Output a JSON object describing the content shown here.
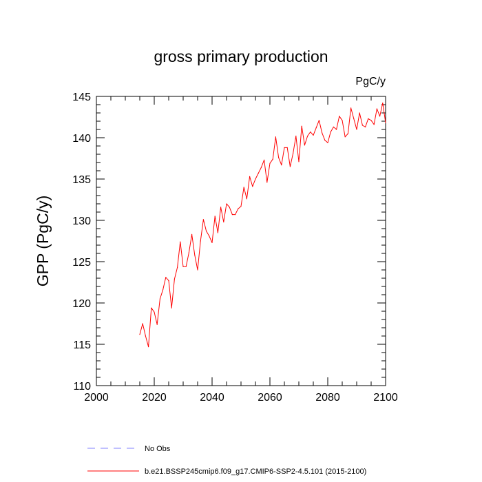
{
  "chart_data": {
    "type": "line",
    "title": "gross primary production",
    "units": "PgC/y",
    "ylabel": "GPP  (PgC/y)",
    "xlabel": "",
    "xlim": [
      2000,
      2100
    ],
    "ylim": [
      110,
      145
    ],
    "xticks": [
      2000,
      2020,
      2040,
      2060,
      2080,
      2100
    ],
    "yticks": [
      110,
      115,
      120,
      125,
      130,
      135,
      140,
      145
    ],
    "grid": false,
    "legend": [
      {
        "name": "No Obs",
        "style": "dashed",
        "color": "#8080ff"
      },
      {
        "name": "b.e21.BSSP245cmip6.f09_g17.CMIP6-SSP2-4.5.101 (2015-2100)",
        "style": "solid",
        "color": "#ff0000"
      }
    ],
    "series": [
      {
        "name": "b.e21.BSSP245cmip6.f09_g17.CMIP6-SSP2-4.5.101 (2015-2100)",
        "color": "#ff0000",
        "x": [
          2015,
          2016,
          2017,
          2018,
          2019,
          2020,
          2021,
          2022,
          2023,
          2024,
          2025,
          2026,
          2027,
          2028,
          2029,
          2030,
          2031,
          2032,
          2033,
          2034,
          2035,
          2036,
          2037,
          2038,
          2039,
          2040,
          2041,
          2042,
          2043,
          2044,
          2045,
          2046,
          2047,
          2048,
          2049,
          2050,
          2051,
          2052,
          2053,
          2054,
          2055,
          2056,
          2057,
          2058,
          2059,
          2060,
          2061,
          2062,
          2063,
          2064,
          2065,
          2066,
          2067,
          2068,
          2069,
          2070,
          2071,
          2072,
          2073,
          2074,
          2075,
          2076,
          2077,
          2078,
          2079,
          2080,
          2081,
          2082,
          2083,
          2084,
          2085,
          2086,
          2087,
          2088,
          2089,
          2090,
          2091,
          2092,
          2093,
          2094,
          2095,
          2096,
          2097,
          2098,
          2099,
          2100
        ],
        "values": [
          116.2,
          117.5,
          116.0,
          114.7,
          119.4,
          118.9,
          117.4,
          120.5,
          121.6,
          123.1,
          122.7,
          119.4,
          122.9,
          124.3,
          127.4,
          124.4,
          124.4,
          126.1,
          128.3,
          125.8,
          124.0,
          127.5,
          130.1,
          128.7,
          128.1,
          127.3,
          130.5,
          128.5,
          131.6,
          129.8,
          132.0,
          131.6,
          130.7,
          130.7,
          131.4,
          131.7,
          134.0,
          132.6,
          135.3,
          134.1,
          135.0,
          135.7,
          136.4,
          137.3,
          134.6,
          136.9,
          137.4,
          140.1,
          137.6,
          136.7,
          138.8,
          138.8,
          136.5,
          138.1,
          140.2,
          137.1,
          141.4,
          139.1,
          140.2,
          140.7,
          140.3,
          141.2,
          142.1,
          140.6,
          139.7,
          139.4,
          140.7,
          141.3,
          141.0,
          142.6,
          142.1,
          140.1,
          140.5,
          143.6,
          142.3,
          141.0,
          143.0,
          141.5,
          141.3,
          142.3,
          142.1,
          141.6,
          143.5,
          142.6,
          144.2,
          141.8
        ]
      }
    ]
  }
}
